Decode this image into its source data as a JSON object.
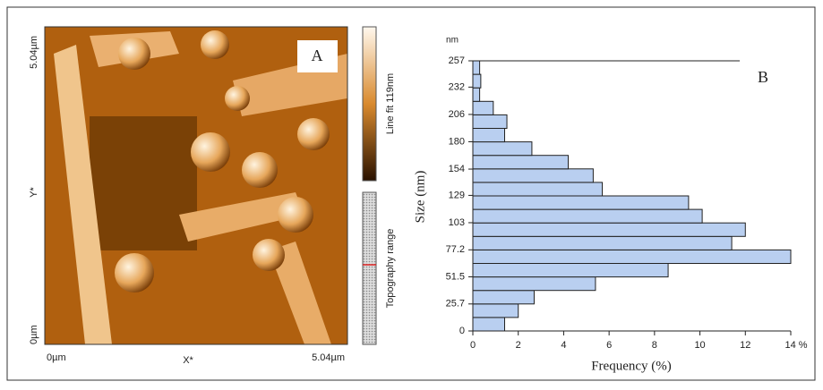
{
  "panel_a": {
    "label": "A",
    "y_top": "5.04µm",
    "y_bottom": "0µm",
    "y_axis": "Y*",
    "x_left": "0µm",
    "x_axis": "X*",
    "x_right": "5.04µm",
    "colorbar_label": "Line fit 119nm",
    "range_label": "Topography range"
  },
  "chart_data": {
    "type": "histogram",
    "orientation": "horizontal",
    "panel_label": "B",
    "y_unit": "nm",
    "xlabel": "Frequency (%)",
    "ylabel": "Size (nm)",
    "color": "#b9cff0",
    "bins": [
      0,
      12.85,
      25.7,
      38.55,
      51.4,
      64.25,
      77.1,
      89.95,
      102.8,
      115.65,
      128.5,
      141.35,
      154.2,
      167.05,
      179.9,
      192.75,
      205.6,
      218.45,
      231.3,
      244.15,
      257
    ],
    "values": [
      1.4,
      2.0,
      2.7,
      5.4,
      8.6,
      14.0,
      11.4,
      12.0,
      10.1,
      9.5,
      5.7,
      5.3,
      4.2,
      2.6,
      1.4,
      1.5,
      0.9,
      0.3,
      0.35,
      0.3
    ],
    "xlim": [
      0,
      14
    ],
    "xticks": [
      0,
      2,
      4,
      6,
      8,
      10,
      12,
      {
        "value": 14,
        "label": "14 %"
      }
    ],
    "ylim": [
      0,
      257
    ],
    "yticks": [
      0,
      25.7,
      51.5,
      77.2,
      103,
      129,
      154,
      180,
      206,
      232,
      257
    ]
  }
}
